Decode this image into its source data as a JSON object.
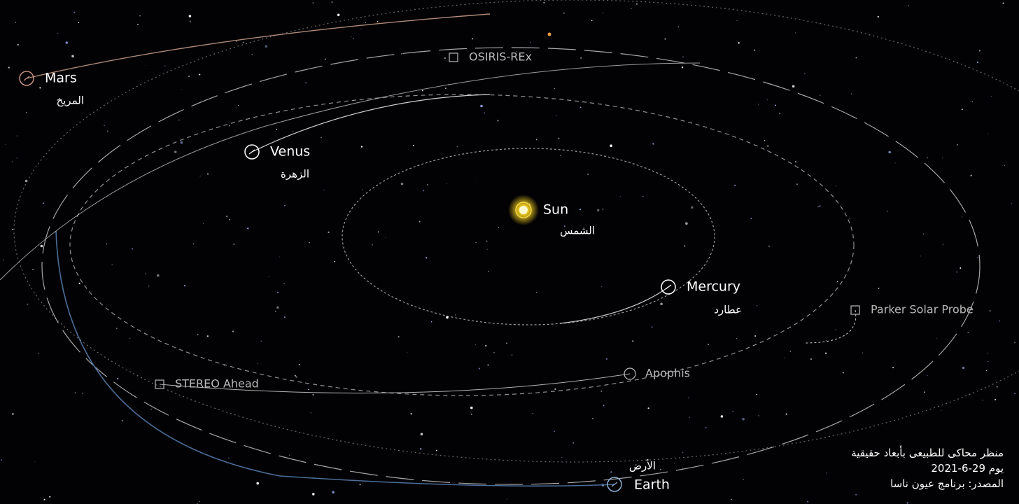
{
  "bodies": [
    {
      "name": "Mars",
      "arabic": "المريخ"
    },
    {
      "name": "Venus",
      "arabic": "الزهرة"
    },
    {
      "name": "Sun",
      "arabic": "الشمس"
    },
    {
      "name": "Mercury",
      "arabic": "عطارد"
    },
    {
      "name": "Earth",
      "arabic": "الأرض"
    }
  ],
  "objects": [
    {
      "name": "OSIRIS-REx"
    },
    {
      "name": "Parker Solar Probe"
    },
    {
      "name": "STEREO Ahead"
    },
    {
      "name": "Apophis"
    }
  ],
  "caption": {
    "lines": [
      "منظر محاكى للطبيعى بأبعاد حقيقية",
      "يوم 29-6-2021",
      "المصدر: برنامج عيون ناسا"
    ]
  }
}
